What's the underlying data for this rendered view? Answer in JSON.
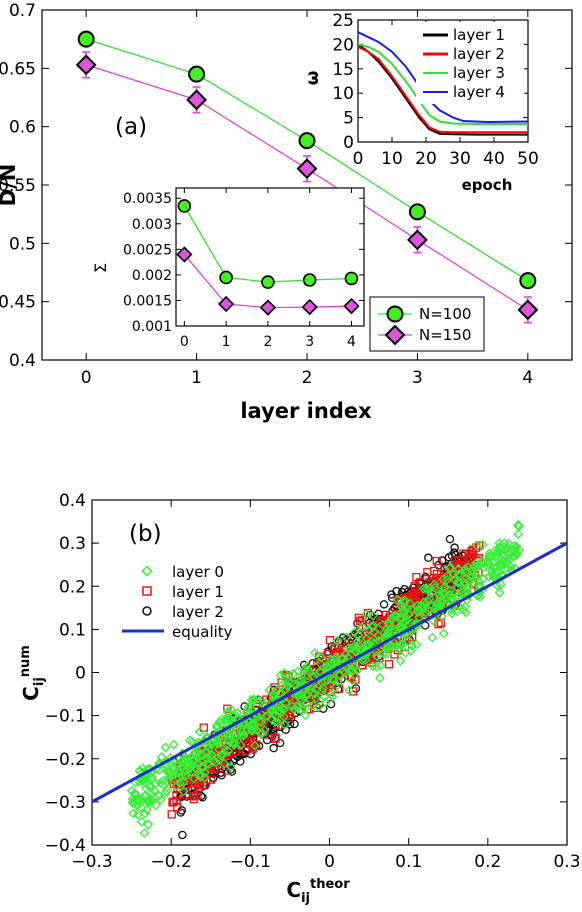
{
  "chart_data": [
    {
      "type": "line",
      "panel_label": "(a)",
      "xlabel": "layer index",
      "ylabel": "D/N",
      "xlim": [
        -0.4,
        4.4
      ],
      "ylim": [
        0.4,
        0.7
      ],
      "xticks": [
        "0",
        "1",
        "2",
        "3",
        "4"
      ],
      "yticks": [
        "0.4",
        "0.45",
        "0.5",
        "0.55",
        "0.6",
        "0.65",
        "0.7"
      ],
      "x": [
        0,
        1,
        2,
        3,
        4
      ],
      "series": [
        {
          "name": "N=100",
          "values": [
            0.675,
            0.645,
            0.588,
            0.527,
            0.468
          ],
          "errors": [
            0.004,
            0.004,
            0.004,
            0.005,
            0.006
          ],
          "color": "#33dd33",
          "marker": "circle",
          "marker_fill": "#44ee22"
        },
        {
          "name": "N=150",
          "values": [
            0.653,
            0.623,
            0.564,
            0.503,
            0.443
          ],
          "errors": [
            0.011,
            0.011,
            0.011,
            0.011,
            0.011
          ],
          "color": "#dd44dd",
          "marker": "diamond",
          "marker_fill": "#dd55dd"
        }
      ],
      "legend": "bottom-right",
      "grid": false,
      "insets": [
        {
          "type": "line",
          "xlabel": "epoch",
          "ylabel": "ω",
          "xlim": [
            0,
            50
          ],
          "ylim": [
            0,
            25
          ],
          "xticks": [
            "0",
            "10",
            "20",
            "30",
            "40",
            "50"
          ],
          "yticks": [
            "0",
            "5",
            "10",
            "15",
            "20",
            "25"
          ],
          "series": [
            {
              "name": "layer 1",
              "color": "#000000",
              "points": [
                [
                  0,
                  20
                ],
                [
                  3,
                  18.5
                ],
                [
                  6,
                  16.5
                ],
                [
                  10,
                  13
                ],
                [
                  14,
                  9
                ],
                [
                  18,
                  5
                ],
                [
                  21,
                  2.6
                ],
                [
                  24,
                  1.7
                ],
                [
                  28,
                  1.6
                ],
                [
                  35,
                  1.5
                ],
                [
                  50,
                  1.5
                ]
              ]
            },
            {
              "name": "layer 2",
              "color": "#ff0000",
              "points": [
                [
                  0,
                  19.5
                ],
                [
                  3,
                  18.5
                ],
                [
                  6,
                  17
                ],
                [
                  10,
                  13.5
                ],
                [
                  14,
                  9.5
                ],
                [
                  18,
                  5.5
                ],
                [
                  21,
                  3
                ],
                [
                  24,
                  2.1
                ],
                [
                  28,
                  2
                ],
                [
                  35,
                  2
                ],
                [
                  50,
                  2
                ]
              ]
            },
            {
              "name": "layer 3",
              "color": "#33dd33",
              "points": [
                [
                  0,
                  20
                ],
                [
                  3,
                  19.5
                ],
                [
                  6,
                  18.5
                ],
                [
                  10,
                  16
                ],
                [
                  14,
                  12.5
                ],
                [
                  18,
                  8.5
                ],
                [
                  21,
                  5.5
                ],
                [
                  24,
                  4.2
                ],
                [
                  28,
                  3.8
                ],
                [
                  35,
                  3.7
                ],
                [
                  50,
                  3.7
                ]
              ]
            },
            {
              "name": "layer 4",
              "color": "#1a1aee",
              "points": [
                [
                  0,
                  22.5
                ],
                [
                  3,
                  21.5
                ],
                [
                  6,
                  20.5
                ],
                [
                  10,
                  18.5
                ],
                [
                  14,
                  15.5
                ],
                [
                  18,
                  11.5
                ],
                [
                  21,
                  8.5
                ],
                [
                  24,
                  6.5
                ],
                [
                  28,
                  5
                ],
                [
                  31,
                  4.3
                ],
                [
                  38,
                  4.1
                ],
                [
                  50,
                  4.2
                ]
              ]
            }
          ],
          "legend": "top-right"
        },
        {
          "type": "line",
          "xlabel": "",
          "ylabel": "Σ",
          "xlim": [
            -0.2,
            4.3
          ],
          "ylim": [
            0.001,
            0.0037
          ],
          "xticks": [
            "0",
            "1",
            "2",
            "3",
            "4"
          ],
          "yticks": [
            "0.001",
            "0.0015",
            "0.002",
            "0.0025",
            "0.003",
            "0.0035"
          ],
          "x": [
            0,
            1,
            2,
            3,
            4
          ],
          "series": [
            {
              "name": "N=100",
              "values": [
                0.00335,
                0.00195,
                0.00186,
                0.0019,
                0.00193
              ],
              "errors": [
                5e-05,
                5e-05,
                5e-05,
                5e-05,
                5e-05
              ],
              "color": "#33dd33"
            },
            {
              "name": "N=150",
              "values": [
                0.0024,
                0.00143,
                0.00136,
                0.00137,
                0.00139
              ],
              "errors": [
                8e-05,
                7e-05,
                7e-05,
                7e-05,
                9e-05
              ],
              "color": "#dd44dd"
            }
          ]
        }
      ]
    },
    {
      "type": "scatter",
      "panel_label": "(b)",
      "xlabel": "C_ij^theor",
      "xlabel_main": "C",
      "xlabel_sub": "ij",
      "xlabel_sup": "theor",
      "ylabel": "C_ij^num",
      "ylabel_main": "C",
      "ylabel_sub": "ij",
      "ylabel_sup": "num",
      "xlim": [
        -0.3,
        0.3
      ],
      "ylim": [
        -0.4,
        0.4
      ],
      "xticks": [
        "−0.3",
        "−0.2",
        "−0.1",
        "0",
        "0.1",
        "0.2",
        "0.3"
      ],
      "yticks": [
        "−0.4",
        "−0.3",
        "−0.2",
        "−0.1",
        "0",
        "0.1",
        "0.2",
        "0.3",
        "0.4"
      ],
      "series": [
        {
          "name": "layer 0",
          "color": "#33ee33",
          "marker": "diamond",
          "x_range": [
            -0.25,
            0.24
          ],
          "slope": 1.17,
          "spread": 0.035
        },
        {
          "name": "layer 1",
          "color": "#ee1111",
          "marker": "square",
          "x_range": [
            -0.2,
            0.19
          ],
          "slope": 1.38,
          "spread": 0.035
        },
        {
          "name": "layer 2",
          "color": "#111111",
          "marker": "circle",
          "x_range": [
            -0.19,
            0.18
          ],
          "slope": 1.47,
          "spread": 0.035
        },
        {
          "name": "equality",
          "color": "#1a2fd0",
          "marker": "line",
          "points": [
            [
              -0.3,
              -0.3
            ],
            [
              0.3,
              0.3
            ]
          ]
        }
      ],
      "legend": "top-left"
    }
  ]
}
